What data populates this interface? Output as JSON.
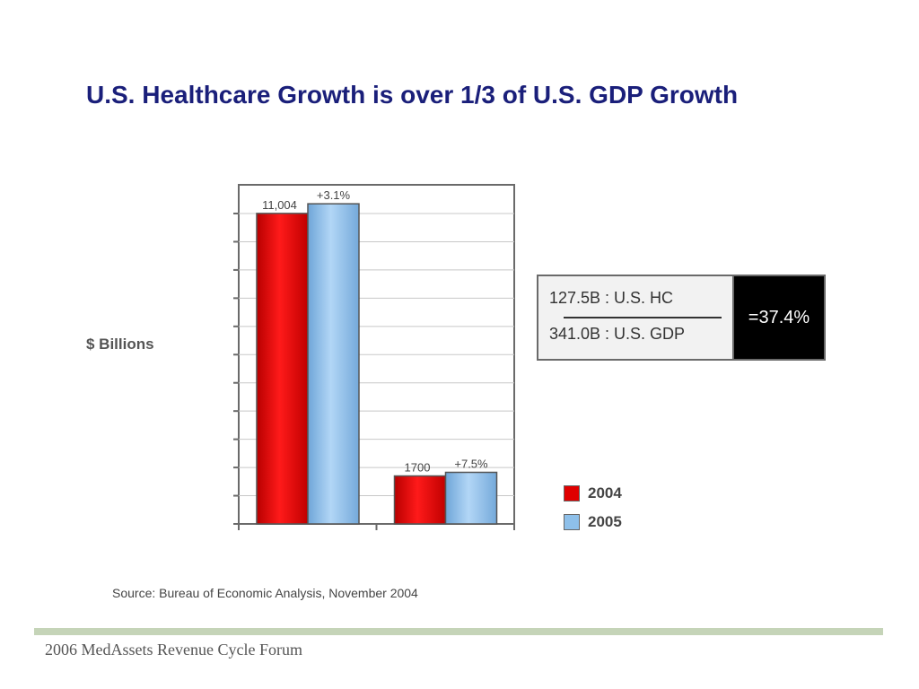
{
  "slide": {
    "title": "U.S. Healthcare Growth is over 1/3 of U.S. GDP Growth",
    "source": "Source:  Bureau of Economic Analysis, November 2004",
    "footer": "2006 MedAssets Revenue Cycle Forum"
  },
  "ratio": {
    "numerator": "127.5B : U.S. HC",
    "denominator": "341.0B : U.S. GDP",
    "result": "=37.4%"
  },
  "colors": {
    "red": "#e00000",
    "blue": "#8ec0ea",
    "title": "#1a1f7a"
  },
  "chart_data": {
    "type": "bar",
    "ylabel": "$ Billions",
    "ylim": [
      0,
      11000
    ],
    "grid": true,
    "legend_position": "bottom-right",
    "series": [
      {
        "name": "2004",
        "color": "#e00000",
        "values": [
          11004,
          1700
        ]
      },
      {
        "name": "2005",
        "color": "#8ec0ea",
        "values": [
          11345,
          1828
        ]
      }
    ],
    "data_labels": [
      {
        "series": 0,
        "index": 0,
        "text": "11,004"
      },
      {
        "series": 1,
        "index": 0,
        "text": "+3.1%"
      },
      {
        "series": 0,
        "index": 1,
        "text": "1700"
      },
      {
        "series": 1,
        "index": 1,
        "text": "+7.5%"
      }
    ]
  }
}
